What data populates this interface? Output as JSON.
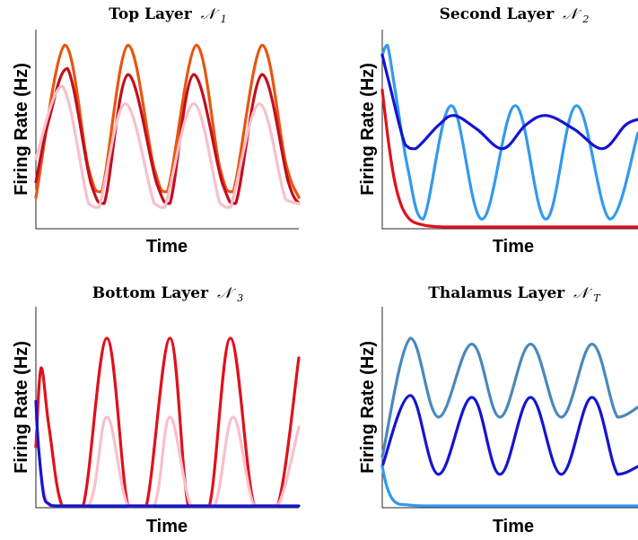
{
  "figure": {
    "colors": {
      "orange": "#E8560F",
      "red": "#E0101C",
      "dark_red": "#C40E1E",
      "pink": "#F8C0CB",
      "light_blue": "#3399EE",
      "blue": "#1414D2",
      "steel_blue": "#4A88BB",
      "azure": "#2E9AF0"
    }
  },
  "chart_data": [
    {
      "type": "line",
      "title": "Top Layer",
      "title_symbol": "𝒩",
      "title_subscript": "1",
      "xlabel": "Time",
      "ylabel": "Firing Rate (Hz)",
      "xlim": [
        0,
        1
      ],
      "ylim": [
        0,
        1
      ],
      "grid": false,
      "ticks": false,
      "series": [
        {
          "color_key": "orange",
          "x": [
            0,
            0.11,
            0.2,
            0.25,
            0.35,
            0.45,
            0.5,
            0.61,
            0.7,
            0.75,
            0.86,
            0.95,
            1.0
          ],
          "y": [
            0.15,
            0.93,
            0.3,
            0.18,
            0.93,
            0.3,
            0.18,
            0.93,
            0.3,
            0.18,
            0.93,
            0.33,
            0.15
          ]
        },
        {
          "color_key": "dark_red",
          "x": [
            0,
            0.05,
            0.12,
            0.21,
            0.26,
            0.35,
            0.46,
            0.51,
            0.6,
            0.71,
            0.76,
            0.86,
            0.96,
            1.0
          ],
          "y": [
            0.23,
            0.55,
            0.81,
            0.22,
            0.12,
            0.78,
            0.22,
            0.12,
            0.78,
            0.22,
            0.12,
            0.78,
            0.23,
            0.12
          ]
        },
        {
          "color_key": "pink",
          "x": [
            0,
            0.1,
            0.2,
            0.24,
            0.34,
            0.45,
            0.49,
            0.6,
            0.7,
            0.74,
            0.85,
            0.95,
            1.0
          ],
          "y": [
            0.35,
            0.72,
            0.12,
            0.1,
            0.63,
            0.12,
            0.1,
            0.63,
            0.12,
            0.1,
            0.63,
            0.14,
            0.12
          ]
        }
      ]
    },
    {
      "type": "line",
      "title": "Second Layer",
      "title_symbol": "𝒩",
      "title_subscript": "2",
      "xlabel": "Time",
      "ylabel": "Firing Rate (Hz)",
      "xlim": [
        0,
        1
      ],
      "ylim": [
        0,
        1
      ],
      "grid": false,
      "ticks": false,
      "series": [
        {
          "color_key": "light_blue",
          "x": [
            0,
            0.02,
            0.05,
            0.1,
            0.16,
            0.27,
            0.39,
            0.52,
            0.64,
            0.76,
            0.89,
            1.0
          ],
          "y": [
            0.88,
            0.93,
            0.7,
            0.3,
            0.04,
            0.62,
            0.04,
            0.62,
            0.04,
            0.62,
            0.04,
            0.48
          ]
        },
        {
          "color_key": "blue",
          "x": [
            0,
            0.03,
            0.09,
            0.13,
            0.22,
            0.28,
            0.37,
            0.47,
            0.56,
            0.64,
            0.75,
            0.86,
            0.95,
            1.0
          ],
          "y": [
            0.88,
            0.72,
            0.42,
            0.4,
            0.52,
            0.57,
            0.5,
            0.4,
            0.52,
            0.57,
            0.5,
            0.4,
            0.52,
            0.55
          ]
        },
        {
          "color_key": "red",
          "x": [
            0,
            0.03,
            0.06,
            0.1,
            0.16,
            0.25,
            0.35,
            0.5,
            0.75,
            1.0
          ],
          "y": [
            0.7,
            0.38,
            0.17,
            0.05,
            0.01,
            0,
            0,
            0,
            0,
            0
          ]
        }
      ]
    },
    {
      "type": "line",
      "title": "Bottom Layer",
      "title_symbol": "𝒩",
      "title_subscript": "3",
      "xlabel": "Time",
      "ylabel": "Firing Rate (Hz)",
      "xlim": [
        0,
        1
      ],
      "ylim": [
        0,
        1
      ],
      "grid": false,
      "ticks": false,
      "series": [
        {
          "color_key": "red",
          "x": [
            0,
            0.02,
            0.05,
            0.1,
            0.18,
            0.27,
            0.35,
            0.42,
            0.51,
            0.58,
            0.66,
            0.74,
            0.83,
            0.92,
            1.0
          ],
          "y": [
            0.3,
            0.7,
            0.4,
            0,
            0,
            0.85,
            0,
            0,
            0.85,
            0,
            0,
            0.85,
            0,
            0,
            0.75
          ]
        },
        {
          "color_key": "pink",
          "x": [
            0,
            0.05,
            0.2,
            0.27,
            0.35,
            0.45,
            0.51,
            0.59,
            0.68,
            0.75,
            0.83,
            0.92,
            1.0
          ],
          "y": [
            0.45,
            0,
            0,
            0.45,
            0,
            0,
            0.45,
            0,
            0,
            0.45,
            0,
            0,
            0.4
          ]
        },
        {
          "color_key": "blue",
          "x": [
            0,
            0.01,
            0.03,
            0.05,
            0.08,
            0.2,
            0.5,
            1.0
          ],
          "y": [
            0.53,
            0.3,
            0.05,
            0.01,
            0,
            0,
            0,
            0
          ]
        }
      ]
    },
    {
      "type": "line",
      "title": "Thalamus Layer",
      "title_symbol": "𝒩",
      "title_subscript": "T",
      "xlabel": "Time",
      "ylabel": "Firing Rate (Hz)",
      "xlim": [
        0,
        1
      ],
      "ylim": [
        0,
        1
      ],
      "grid": false,
      "ticks": false,
      "series": [
        {
          "color_key": "steel_blue",
          "x": [
            0,
            0.11,
            0.22,
            0.35,
            0.46,
            0.58,
            0.7,
            0.82,
            0.92,
            1.0
          ],
          "y": [
            0.25,
            0.85,
            0.45,
            0.82,
            0.45,
            0.82,
            0.45,
            0.82,
            0.45,
            0.5
          ]
        },
        {
          "color_key": "blue",
          "x": [
            0,
            0.11,
            0.22,
            0.35,
            0.46,
            0.58,
            0.7,
            0.82,
            0.92,
            1.0
          ],
          "y": [
            0.2,
            0.56,
            0.16,
            0.55,
            0.16,
            0.55,
            0.16,
            0.55,
            0.16,
            0.2
          ]
        },
        {
          "color_key": "azure",
          "x": [
            0,
            0.02,
            0.05,
            0.1,
            0.2,
            0.5,
            1.0
          ],
          "y": [
            0.2,
            0.09,
            0.02,
            0.005,
            0,
            0,
            0
          ]
        }
      ]
    }
  ]
}
